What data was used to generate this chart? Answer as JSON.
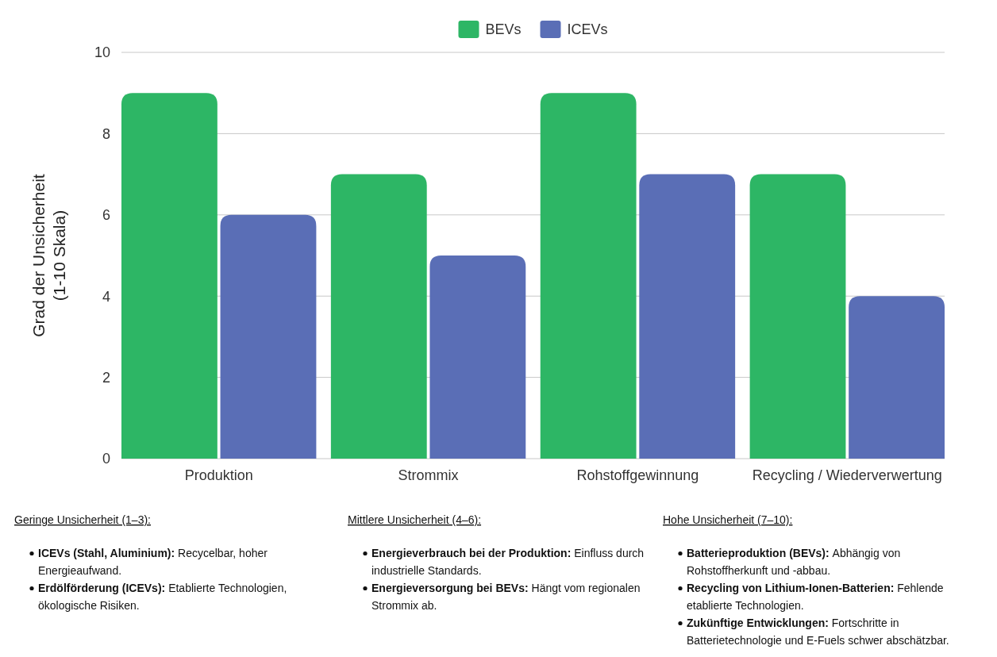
{
  "chart_data": {
    "type": "bar",
    "ylabel": "Grad der Unsicherheit\n(1-10 Skala)",
    "categories": [
      "Produktion",
      "Strommix",
      "Rohstoffgewinnung",
      "Recycling / Wiederverwertung"
    ],
    "series": [
      {
        "name": "BEVs",
        "color": "#2db665",
        "values": [
          9,
          7,
          9,
          7
        ]
      },
      {
        "name": "ICEVs",
        "color": "#5a6eb6",
        "values": [
          6,
          5,
          7,
          4
        ]
      }
    ],
    "ylim": [
      0,
      10
    ],
    "yticks": [
      0,
      2,
      4,
      6,
      8,
      10
    ],
    "grid": "y",
    "legend": "top",
    "annotations": [
      "Geringe Unsicherheit (1–3):",
      "ICEVs (Stahl, Aluminium): Recycelbar, hoher Energieaufwand.",
      "Erdölförderung (ICEVs): Etablierte Technologien, ökologische Risiken.",
      "Mittlere Unsicherheit (4–6):",
      "Energieverbrauch bei der Produktion: Einfluss durch industrielle Standards.",
      "Energieversorgung bei BEVs: Hängt vom regionalen Strommix ab.",
      "Hohe Unsicherheit (7–10):",
      "Batterieproduktion (BEVs): Abhängig von Rohstoffherkunft und -abbau.",
      "Recycling von Lithium-Ionen-Batterien: Fehlende etablierte Technologien.",
      "Zukünftige Entwicklungen: Fortschritte in Batterietechnologie und E-Fuels schwer abschätzbar."
    ]
  }
}
